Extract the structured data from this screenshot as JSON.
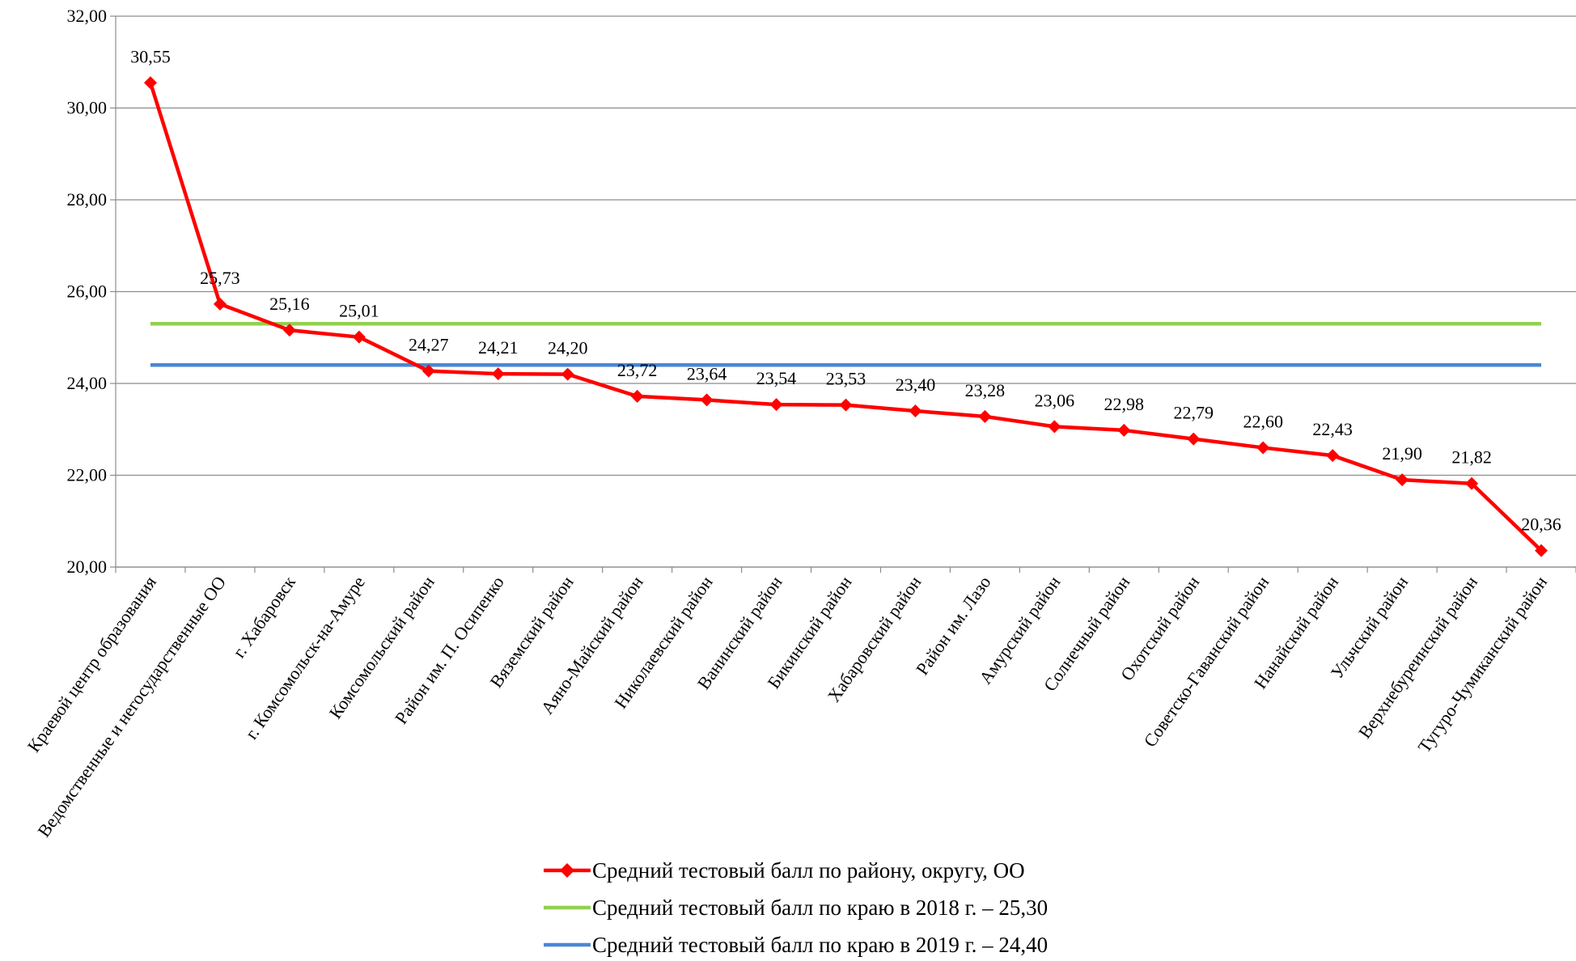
{
  "chart_data": {
    "type": "line",
    "title": "",
    "xlabel": "",
    "ylabel": "",
    "ylim": [
      20,
      32
    ],
    "yticks": [
      "20,00",
      "22,00",
      "24,00",
      "26,00",
      "28,00",
      "30,00",
      "32,00"
    ],
    "grid": true,
    "legend_position": "bottom",
    "categories": [
      "Краевой центр образования",
      "Ведомственные и негосударственные ОО",
      "г. Хабаровск",
      "г. Комсомольск-на-Амуре",
      "Комсомольский район",
      "Район им. П. Осипенко",
      "Вяземский район",
      "Аяно-Майский район",
      "Николаевский район",
      "Ванинский район",
      "Бикинский район",
      "Хабаровский район",
      "Район им. Лазо",
      "Амурский район",
      "Солнечный район",
      "Охотский район",
      "Советско-Гаванский район",
      "Нанайский район",
      "Ульчский район",
      "Верхнебуреинский район",
      "Тугуро-Чумиканский район"
    ],
    "series": [
      {
        "name": "Средний тестовый балл по району, округу, ОО",
        "color": "#ff0000",
        "marker": "diamond",
        "values": [
          30.55,
          25.73,
          25.16,
          25.01,
          24.27,
          24.21,
          24.2,
          23.72,
          23.64,
          23.54,
          23.53,
          23.4,
          23.28,
          23.06,
          22.98,
          22.79,
          22.6,
          22.43,
          21.9,
          21.82,
          20.36
        ],
        "data_labels": [
          "30,55",
          "25,73",
          "25,16",
          "25,01",
          "24,27",
          "24,21",
          "24,20",
          "23,72",
          "23,64",
          "23,54",
          "23,53",
          "23,40",
          "23,28",
          "23,06",
          "22,98",
          "22,79",
          "22,60",
          "22,43",
          "21,90",
          "21,82",
          "20,36"
        ]
      },
      {
        "name": "Средний тестовый балл по краю в 2018 г. – 25,30",
        "color": "#92d050",
        "marker": "none",
        "constant": 25.3
      },
      {
        "name": "Средний тестовый балл по краю в 2019 г. – 24,40",
        "color": "#4a86d6",
        "marker": "none",
        "constant": 24.4
      }
    ]
  }
}
